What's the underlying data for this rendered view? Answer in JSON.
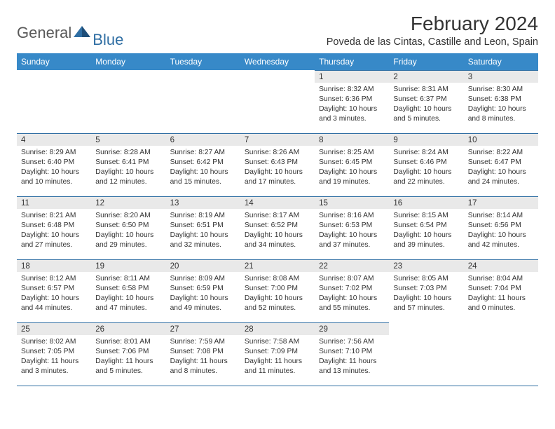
{
  "logo": {
    "text1": "General",
    "text2": "Blue"
  },
  "title": "February 2024",
  "location": "Poveda de las Cintas, Castille and Leon, Spain",
  "colors": {
    "headerBg": "#3789c8",
    "headerText": "#ffffff",
    "dayNumBg": "#e9e9e9",
    "ruleColor": "#2f6ea3",
    "logoGray": "#595959",
    "logoBlue": "#2f6ea3",
    "textColor": "#333333"
  },
  "weekdays": [
    "Sunday",
    "Monday",
    "Tuesday",
    "Wednesday",
    "Thursday",
    "Friday",
    "Saturday"
  ],
  "grid": [
    [
      null,
      null,
      null,
      null,
      {
        "n": "1",
        "sr": "8:32 AM",
        "ss": "6:36 PM",
        "dl": "10 hours and 3 minutes."
      },
      {
        "n": "2",
        "sr": "8:31 AM",
        "ss": "6:37 PM",
        "dl": "10 hours and 5 minutes."
      },
      {
        "n": "3",
        "sr": "8:30 AM",
        "ss": "6:38 PM",
        "dl": "10 hours and 8 minutes."
      }
    ],
    [
      {
        "n": "4",
        "sr": "8:29 AM",
        "ss": "6:40 PM",
        "dl": "10 hours and 10 minutes."
      },
      {
        "n": "5",
        "sr": "8:28 AM",
        "ss": "6:41 PM",
        "dl": "10 hours and 12 minutes."
      },
      {
        "n": "6",
        "sr": "8:27 AM",
        "ss": "6:42 PM",
        "dl": "10 hours and 15 minutes."
      },
      {
        "n": "7",
        "sr": "8:26 AM",
        "ss": "6:43 PM",
        "dl": "10 hours and 17 minutes."
      },
      {
        "n": "8",
        "sr": "8:25 AM",
        "ss": "6:45 PM",
        "dl": "10 hours and 19 minutes."
      },
      {
        "n": "9",
        "sr": "8:24 AM",
        "ss": "6:46 PM",
        "dl": "10 hours and 22 minutes."
      },
      {
        "n": "10",
        "sr": "8:22 AM",
        "ss": "6:47 PM",
        "dl": "10 hours and 24 minutes."
      }
    ],
    [
      {
        "n": "11",
        "sr": "8:21 AM",
        "ss": "6:48 PM",
        "dl": "10 hours and 27 minutes."
      },
      {
        "n": "12",
        "sr": "8:20 AM",
        "ss": "6:50 PM",
        "dl": "10 hours and 29 minutes."
      },
      {
        "n": "13",
        "sr": "8:19 AM",
        "ss": "6:51 PM",
        "dl": "10 hours and 32 minutes."
      },
      {
        "n": "14",
        "sr": "8:17 AM",
        "ss": "6:52 PM",
        "dl": "10 hours and 34 minutes."
      },
      {
        "n": "15",
        "sr": "8:16 AM",
        "ss": "6:53 PM",
        "dl": "10 hours and 37 minutes."
      },
      {
        "n": "16",
        "sr": "8:15 AM",
        "ss": "6:54 PM",
        "dl": "10 hours and 39 minutes."
      },
      {
        "n": "17",
        "sr": "8:14 AM",
        "ss": "6:56 PM",
        "dl": "10 hours and 42 minutes."
      }
    ],
    [
      {
        "n": "18",
        "sr": "8:12 AM",
        "ss": "6:57 PM",
        "dl": "10 hours and 44 minutes."
      },
      {
        "n": "19",
        "sr": "8:11 AM",
        "ss": "6:58 PM",
        "dl": "10 hours and 47 minutes."
      },
      {
        "n": "20",
        "sr": "8:09 AM",
        "ss": "6:59 PM",
        "dl": "10 hours and 49 minutes."
      },
      {
        "n": "21",
        "sr": "8:08 AM",
        "ss": "7:00 PM",
        "dl": "10 hours and 52 minutes."
      },
      {
        "n": "22",
        "sr": "8:07 AM",
        "ss": "7:02 PM",
        "dl": "10 hours and 55 minutes."
      },
      {
        "n": "23",
        "sr": "8:05 AM",
        "ss": "7:03 PM",
        "dl": "10 hours and 57 minutes."
      },
      {
        "n": "24",
        "sr": "8:04 AM",
        "ss": "7:04 PM",
        "dl": "11 hours and 0 minutes."
      }
    ],
    [
      {
        "n": "25",
        "sr": "8:02 AM",
        "ss": "7:05 PM",
        "dl": "11 hours and 3 minutes."
      },
      {
        "n": "26",
        "sr": "8:01 AM",
        "ss": "7:06 PM",
        "dl": "11 hours and 5 minutes."
      },
      {
        "n": "27",
        "sr": "7:59 AM",
        "ss": "7:08 PM",
        "dl": "11 hours and 8 minutes."
      },
      {
        "n": "28",
        "sr": "7:58 AM",
        "ss": "7:09 PM",
        "dl": "11 hours and 11 minutes."
      },
      {
        "n": "29",
        "sr": "7:56 AM",
        "ss": "7:10 PM",
        "dl": "11 hours and 13 minutes."
      },
      null,
      null
    ]
  ],
  "labels": {
    "sunrise": "Sunrise: ",
    "sunset": "Sunset: ",
    "daylight": "Daylight: "
  }
}
